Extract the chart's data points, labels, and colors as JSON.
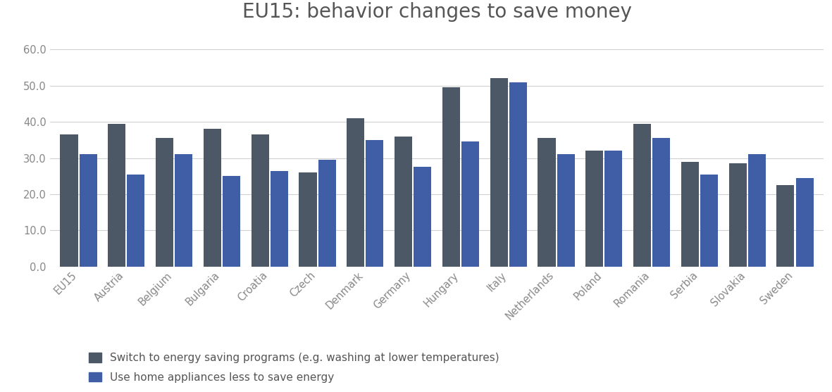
{
  "title": "EU15: behavior changes to save money",
  "categories": [
    "EU15",
    "Austria",
    "Belgium",
    "Bulgaria",
    "Croatia",
    "Czech",
    "Denmark",
    "Germany",
    "Hungary",
    "Italy",
    "Netherlands",
    "Poland",
    "Romania",
    "Serbia",
    "Slovakia",
    "Sweden"
  ],
  "series1_label": "Switch to energy saving programs (e.g. washing at lower temperatures)",
  "series2_label": "Use home appliances less to save energy",
  "series1_values": [
    36.5,
    39.5,
    35.5,
    38.0,
    36.5,
    26.0,
    41.0,
    36.0,
    49.5,
    52.0,
    35.5,
    32.0,
    39.5,
    29.0,
    28.5,
    22.5
  ],
  "series2_values": [
    31.0,
    25.5,
    31.0,
    25.0,
    26.5,
    29.5,
    35.0,
    27.5,
    34.5,
    51.0,
    31.0,
    32.0,
    35.5,
    25.5,
    31.0,
    24.5
  ],
  "color1": "#4d5866",
  "color2": "#3f5ea6",
  "ylim": [
    0,
    65
  ],
  "yticks": [
    0.0,
    10.0,
    20.0,
    30.0,
    40.0,
    50.0,
    60.0
  ],
  "background_color": "#ffffff",
  "grid_color": "#d0d0d0",
  "title_fontsize": 20,
  "tick_fontsize": 10.5,
  "legend_fontsize": 11
}
